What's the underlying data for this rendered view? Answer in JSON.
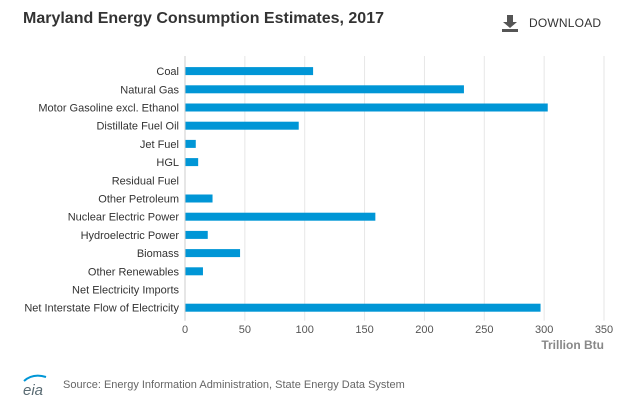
{
  "header": {
    "title": "Maryland Energy Consumption Estimates, 2017",
    "download_label": "DOWNLOAD",
    "download_icon": "download-icon"
  },
  "footer": {
    "logo_text": "eia",
    "source": "Source: Energy Information Administration, State Energy Data System"
  },
  "colors": {
    "bar": "#0096d6",
    "title": "#333333",
    "axis_title": "#888888",
    "grid": "#e6e6e6"
  },
  "chart_data": {
    "type": "bar",
    "orientation": "horizontal",
    "title": "Maryland Energy Consumption Estimates, 2017",
    "xlabel": "Trillion Btu",
    "ylabel": "",
    "xlim": [
      0,
      350
    ],
    "xticks": [
      0,
      50,
      100,
      150,
      200,
      250,
      300,
      350
    ],
    "grid": true,
    "categories": [
      "Coal",
      "Natural Gas",
      "Motor Gasoline excl. Ethanol",
      "Distillate Fuel Oil",
      "Jet Fuel",
      "HGL",
      "Residual Fuel",
      "Other Petroleum",
      "Nuclear Electric Power",
      "Hydroelectric Power",
      "Biomass",
      "Other Renewables",
      "Net Electricity Imports",
      "Net Interstate Flow of Electricity"
    ],
    "values": [
      107,
      233,
      303,
      95,
      9,
      11,
      0,
      23,
      159,
      19,
      46,
      15,
      0,
      297
    ]
  }
}
